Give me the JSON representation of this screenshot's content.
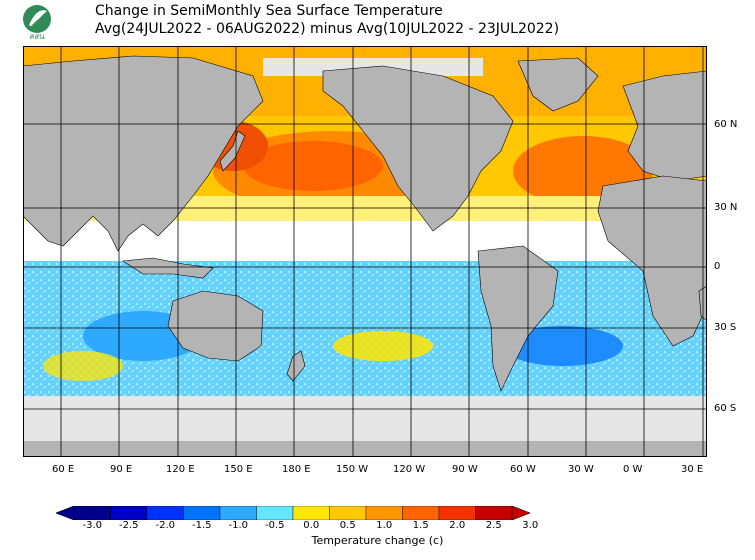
{
  "title": {
    "line1": "Change in SemiMonthly Sea Surface Temperature",
    "line2": "Avg(24JUL2022 - 06AUG2022) minus Avg(10JUL2022 - 23JUL2022)"
  },
  "logo": {
    "icon": "leaf-logo-icon",
    "text": "สสน",
    "color": "#2e8b57"
  },
  "map": {
    "lat_labels": [
      "60 N",
      "30 N",
      "0",
      "30 S",
      "60 S"
    ],
    "lon_labels": [
      "60 E",
      "90 E",
      "120 E",
      "150 E",
      "180 E",
      "150 W",
      "120 W",
      "90 W",
      "60 W",
      "30 W",
      "0 W",
      "30 E"
    ],
    "land_color": "#b4b4b4",
    "ice_color": "#e6e6e6"
  },
  "colorbar": {
    "ticks": [
      "-3.0",
      "-2.5",
      "-2.0",
      "-1.5",
      "-1.0",
      "-0.5",
      "0.0",
      "0.5",
      "1.0",
      "1.5",
      "2.0",
      "2.5",
      "3.0"
    ],
    "label": "Temperature change  (c)",
    "colors": [
      "#00008c",
      "#0000c8",
      "#0032ff",
      "#0073ff",
      "#2daaff",
      "#64e6ff",
      "#ffffff",
      "#ffe600",
      "#ffc800",
      "#ff9600",
      "#ff6400",
      "#f53200",
      "#c80000"
    ]
  }
}
